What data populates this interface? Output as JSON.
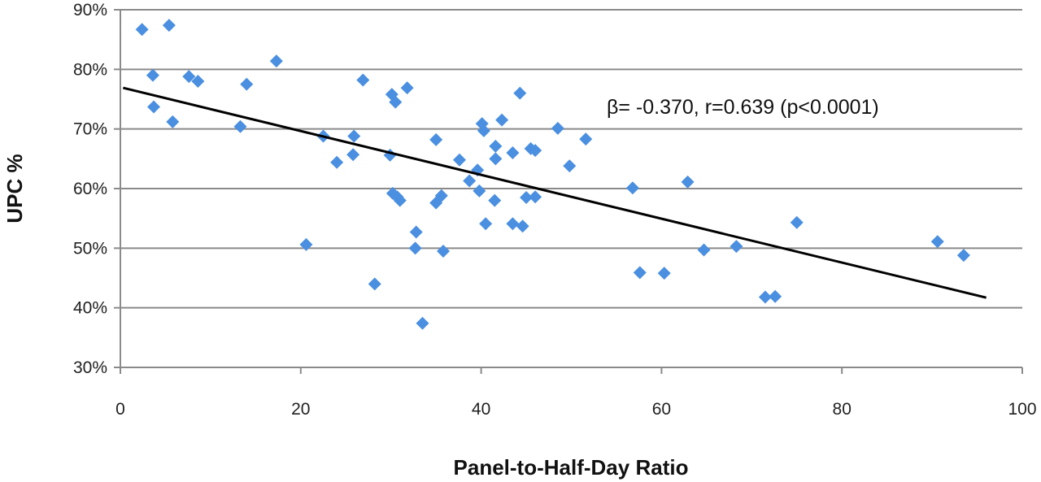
{
  "chart_data": {
    "type": "scatter",
    "xlabel": "Panel-to-Half-Day Ratio",
    "ylabel": "UPC %",
    "xlim": [
      0,
      100
    ],
    "ylim": [
      30,
      90
    ],
    "x_ticks": [
      0,
      20,
      40,
      60,
      80,
      100
    ],
    "y_ticks": [
      30,
      40,
      50,
      60,
      70,
      80,
      90
    ],
    "x_tick_labels": [
      "0",
      "20",
      "40",
      "60",
      "80",
      "100"
    ],
    "y_tick_labels": [
      "30%",
      "40%",
      "50%",
      "60%",
      "70%",
      "80%",
      "90%"
    ],
    "grid": "horizontal",
    "marker_color": "#4a8fe0",
    "trendline_color": "#000000",
    "annotation": "β= -0.370, r=0.639 (p<0.0001)",
    "trendline": {
      "x": [
        0.3,
        96
      ],
      "y": [
        76.9,
        41.7
      ]
    },
    "points": [
      [
        2.4,
        86.7
      ],
      [
        5.4,
        87.4
      ],
      [
        3.6,
        79.0
      ],
      [
        3.7,
        73.7
      ],
      [
        5.8,
        71.2
      ],
      [
        7.6,
        78.8
      ],
      [
        8.6,
        78.0
      ],
      [
        14.0,
        77.5
      ],
      [
        13.3,
        70.4
      ],
      [
        17.3,
        81.4
      ],
      [
        22.5,
        68.8
      ],
      [
        24.0,
        64.4
      ],
      [
        25.8,
        65.7
      ],
      [
        25.9,
        68.8
      ],
      [
        26.9,
        78.2
      ],
      [
        20.6,
        50.6
      ],
      [
        28.2,
        44.0
      ],
      [
        30.1,
        75.8
      ],
      [
        30.5,
        74.5
      ],
      [
        31.8,
        76.9
      ],
      [
        29.9,
        65.6
      ],
      [
        30.2,
        59.2
      ],
      [
        30.7,
        58.6
      ],
      [
        31.0,
        58.0
      ],
      [
        32.8,
        52.7
      ],
      [
        32.7,
        50.0
      ],
      [
        33.5,
        37.4
      ],
      [
        35.0,
        68.2
      ],
      [
        35.0,
        57.6
      ],
      [
        35.6,
        58.8
      ],
      [
        35.8,
        49.5
      ],
      [
        37.6,
        64.8
      ],
      [
        38.7,
        61.3
      ],
      [
        39.6,
        63.1
      ],
      [
        39.8,
        59.6
      ],
      [
        40.1,
        70.9
      ],
      [
        40.3,
        69.7
      ],
      [
        40.5,
        54.1
      ],
      [
        41.6,
        67.1
      ],
      [
        41.6,
        65.0
      ],
      [
        41.5,
        58.0
      ],
      [
        42.3,
        71.5
      ],
      [
        43.5,
        66.0
      ],
      [
        43.5,
        54.1
      ],
      [
        44.3,
        76.0
      ],
      [
        44.6,
        53.7
      ],
      [
        45.0,
        58.5
      ],
      [
        45.5,
        66.7
      ],
      [
        46.0,
        66.4
      ],
      [
        46.0,
        58.6
      ],
      [
        48.5,
        70.1
      ],
      [
        49.8,
        63.8
      ],
      [
        51.6,
        68.3
      ],
      [
        56.8,
        60.1
      ],
      [
        57.6,
        45.9
      ],
      [
        60.3,
        45.8
      ],
      [
        62.9,
        61.1
      ],
      [
        64.7,
        49.7
      ],
      [
        68.3,
        50.3
      ],
      [
        71.5,
        41.8
      ],
      [
        72.6,
        41.9
      ],
      [
        75.0,
        54.3
      ],
      [
        90.6,
        51.1
      ],
      [
        93.5,
        48.8
      ]
    ]
  }
}
